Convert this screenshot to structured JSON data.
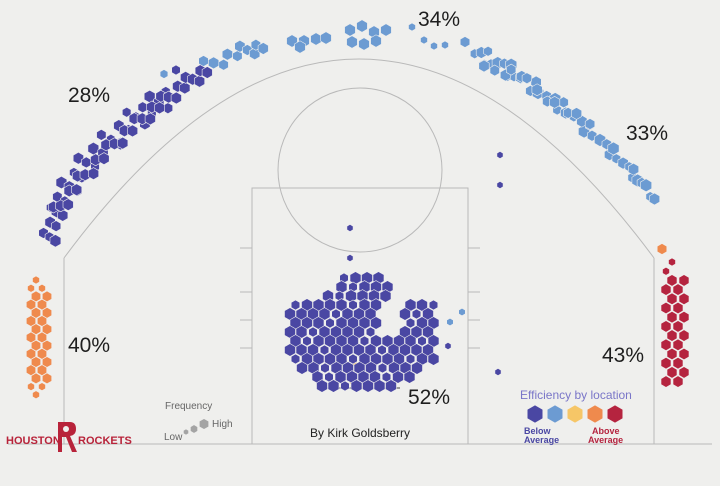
{
  "chart_data": {
    "type": "heatmap",
    "title": "",
    "subtitle": "",
    "credit": "By Kirk Goldsberry",
    "team": {
      "word1": "HOUSTON",
      "word2": "ROCKETS"
    },
    "efficiency_colors": {
      "below_average": "#4a47a3",
      "mid_low": "#6c9bd2",
      "average": "#f6c667",
      "mid_high": "#ef8a4d",
      "above_average": "#b5243f"
    },
    "zones": [
      {
        "name": "Left corner three",
        "fg_pct": "40%",
        "efficiency": "mid_high"
      },
      {
        "name": "Left wing three",
        "fg_pct": "28%",
        "efficiency": "below_average"
      },
      {
        "name": "Top of the key three",
        "fg_pct": "34%",
        "efficiency": "mid_low"
      },
      {
        "name": "Right wing three",
        "fg_pct": "33%",
        "efficiency": "mid_low"
      },
      {
        "name": "Right corner three",
        "fg_pct": "43%",
        "efficiency": "above_average"
      },
      {
        "name": "At the rim",
        "fg_pct": "52%",
        "efficiency": "below_average"
      }
    ],
    "legend_frequency": {
      "title": "Frequency",
      "low": "Low",
      "high": "High"
    },
    "legend_efficiency": {
      "title": "Efficiency by location",
      "below": [
        "Below",
        "Average"
      ],
      "above": [
        "Above",
        "Average"
      ]
    }
  }
}
